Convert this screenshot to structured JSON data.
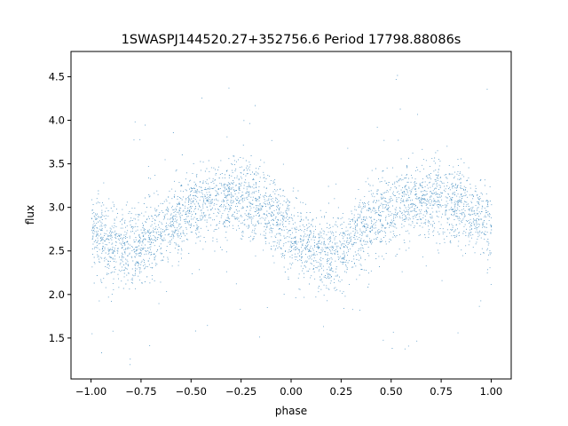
{
  "chart_data": {
    "type": "scatter",
    "title": "1SWASPJ144520.27+352756.6 Period 17798.88086s",
    "xlabel": "phase",
    "ylabel": "flux",
    "xlim": [
      -1.1,
      1.1
    ],
    "ylim": [
      1.03,
      4.79
    ],
    "xticks": [
      -1.0,
      -0.75,
      -0.5,
      -0.25,
      0.0,
      0.25,
      0.5,
      0.75,
      1.0
    ],
    "xtick_labels": [
      "−1.00",
      "−0.75",
      "−0.50",
      "−0.25",
      "0.00",
      "0.25",
      "0.50",
      "0.75",
      "1.00"
    ],
    "yticks": [
      1.5,
      2.0,
      2.5,
      3.0,
      3.5,
      4.0,
      4.5
    ],
    "ytick_labels": [
      "1.5",
      "2.0",
      "2.5",
      "3.0",
      "3.5",
      "4.0",
      "4.5"
    ],
    "grid": false,
    "marker_color": "#1f77b4",
    "series": [
      {
        "phase_range": [
          -1.0,
          1.0
        ],
        "mean_flux_curve": {
          "x": [
            -1.0,
            -0.9,
            -0.8,
            -0.7,
            -0.6,
            -0.5,
            -0.4,
            -0.3,
            -0.2,
            -0.1,
            0.0,
            0.1,
            0.2,
            0.3,
            0.4,
            0.5,
            0.6,
            0.7,
            0.8,
            0.9,
            1.0
          ],
          "y": [
            2.72,
            2.57,
            2.5,
            2.63,
            2.82,
            2.96,
            3.05,
            3.1,
            3.05,
            2.93,
            2.7,
            2.5,
            2.45,
            2.65,
            2.85,
            2.98,
            3.06,
            3.1,
            3.05,
            2.95,
            2.75
          ]
        },
        "scatter_spread": 0.22,
        "point_count": 9000
      }
    ]
  }
}
